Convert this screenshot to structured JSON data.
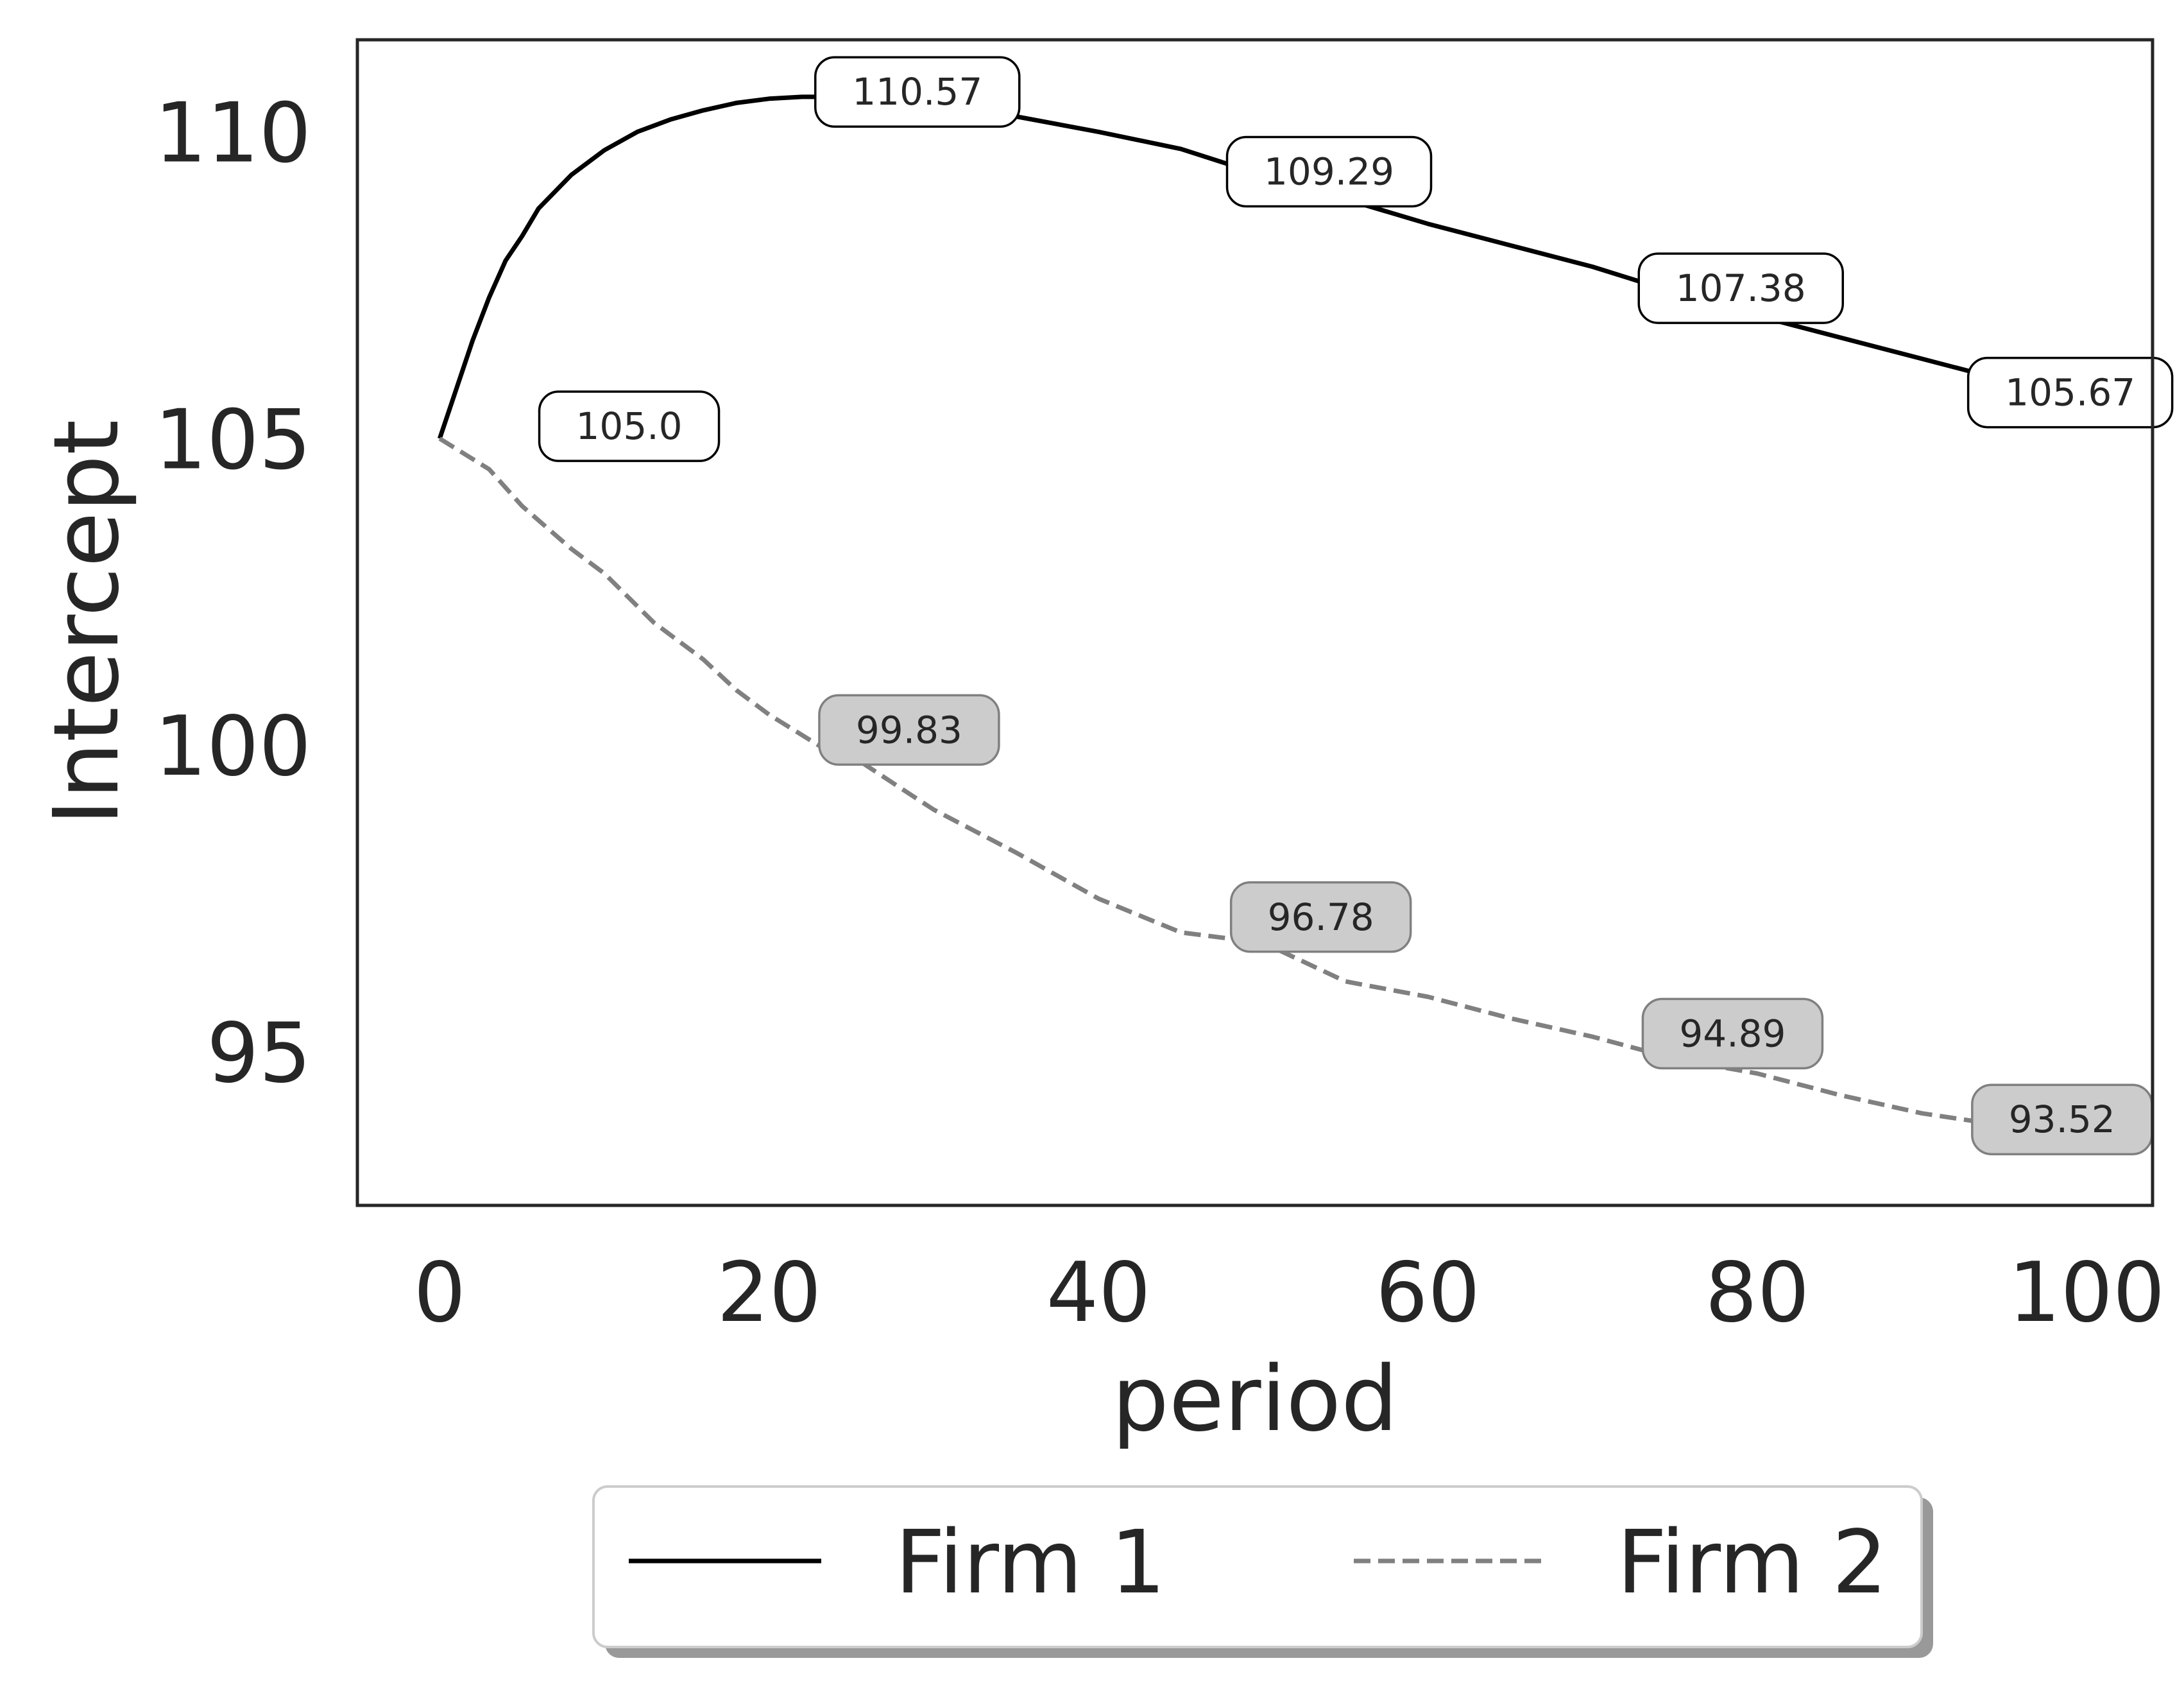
{
  "chart_data": {
    "type": "line",
    "xlabel": "period",
    "ylabel": "Intercept",
    "xlim": [
      -5,
      104
    ],
    "ylim": [
      92.5,
      111.5
    ],
    "xticks": [
      0,
      20,
      40,
      60,
      80,
      100
    ],
    "yticks": [
      95,
      100,
      105,
      110
    ],
    "grid": false,
    "legend_position": "bottom-center",
    "series": [
      {
        "name": "Firm 1",
        "color": "#000000",
        "style": "solid",
        "x": [
          0,
          1,
          2,
          3,
          4,
          5,
          6,
          8,
          10,
          12,
          14,
          16,
          18,
          20,
          22,
          24,
          26,
          28,
          30,
          35,
          40,
          45,
          50,
          55,
          60,
          65,
          70,
          75,
          80,
          85,
          90,
          95,
          100
        ],
        "y": [
          105.0,
          105.8,
          106.6,
          107.3,
          107.9,
          108.3,
          108.75,
          109.3,
          109.7,
          110.0,
          110.2,
          110.35,
          110.47,
          110.54,
          110.57,
          110.57,
          110.56,
          110.52,
          110.46,
          110.25,
          110.0,
          109.72,
          109.29,
          108.9,
          108.5,
          108.15,
          107.8,
          107.38,
          107.0,
          106.65,
          106.3,
          105.95,
          105.67
        ]
      },
      {
        "name": "Firm 2",
        "color": "#808080",
        "style": "dashed",
        "x": [
          0,
          3,
          5,
          8,
          10,
          13,
          16,
          18,
          20,
          23,
          25,
          28,
          30,
          35,
          40,
          45,
          50,
          55,
          60,
          65,
          70,
          75,
          80,
          85,
          90,
          95,
          100
        ],
        "y": [
          105.0,
          104.5,
          103.9,
          103.2,
          102.8,
          102.0,
          101.4,
          100.9,
          100.5,
          100.0,
          99.83,
          99.3,
          98.95,
          98.25,
          97.5,
          96.95,
          96.78,
          96.15,
          95.9,
          95.55,
          95.25,
          94.89,
          94.65,
          94.3,
          94.0,
          93.8,
          93.52
        ]
      }
    ],
    "annotations": [
      {
        "series": "Firm 1",
        "text": "105.0",
        "x": 11.5,
        "y": 105.2
      },
      {
        "series": "Firm 1",
        "text": "110.57",
        "x": 29,
        "y": 110.65
      },
      {
        "series": "Firm 1",
        "text": "109.29",
        "x": 54,
        "y": 109.35
      },
      {
        "series": "Firm 1",
        "text": "107.38",
        "x": 79,
        "y": 107.45
      },
      {
        "series": "Firm 1",
        "text": "105.67",
        "x": 99,
        "y": 105.75
      },
      {
        "series": "Firm 2",
        "text": "99.83",
        "x": 28.5,
        "y": 100.25
      },
      {
        "series": "Firm 2",
        "text": "96.78",
        "x": 53.5,
        "y": 97.2
      },
      {
        "series": "Firm 2",
        "text": "94.89",
        "x": 78.5,
        "y": 95.3
      },
      {
        "series": "Firm 2",
        "text": "93.52",
        "x": 98.5,
        "y": 93.9
      }
    ]
  }
}
